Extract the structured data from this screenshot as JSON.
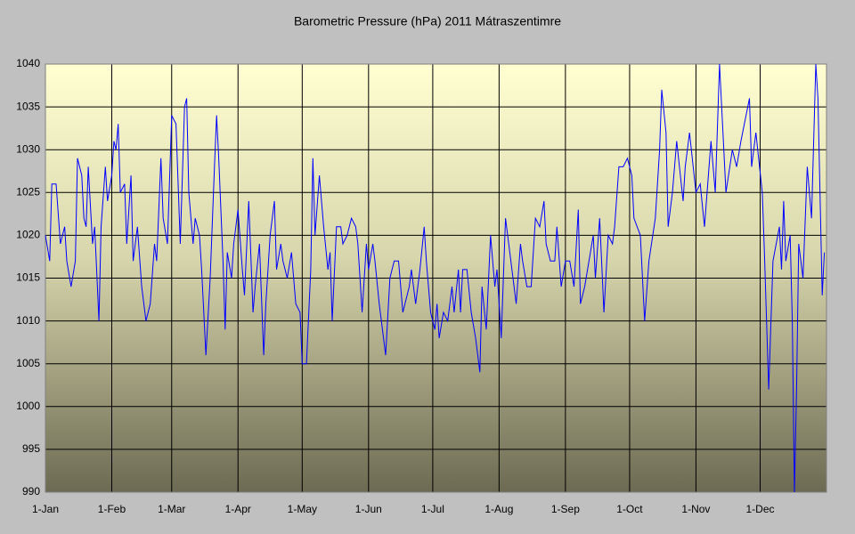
{
  "chart_data": {
    "type": "line",
    "title": "Barometric Pressure (hPa) 2011 Mátraszentimre",
    "color": "#0000ff",
    "grid": true,
    "xlim": [
      0,
      365
    ],
    "xticks": [
      {
        "value": 0,
        "label": "1-Jan"
      },
      {
        "value": 31,
        "label": "1-Feb"
      },
      {
        "value": 59,
        "label": "1-Mar"
      },
      {
        "value": 90,
        "label": "1-Apr"
      },
      {
        "value": 120,
        "label": "1-May"
      },
      {
        "value": 151,
        "label": "1-Jun"
      },
      {
        "value": 181,
        "label": "1-Jul"
      },
      {
        "value": 212,
        "label": "1-Aug"
      },
      {
        "value": 243,
        "label": "1-Sep"
      },
      {
        "value": 273,
        "label": "1-Oct"
      },
      {
        "value": 304,
        "label": "1-Nov"
      },
      {
        "value": 334,
        "label": "1-Dec"
      }
    ],
    "ylim": [
      990,
      1040
    ],
    "yticks": [
      990,
      995,
      1000,
      1005,
      1010,
      1015,
      1020,
      1025,
      1030,
      1035,
      1040
    ],
    "x": [
      0,
      2,
      3,
      5,
      7,
      9,
      10,
      12,
      14,
      15,
      17,
      18,
      19,
      20,
      22,
      23,
      25,
      26,
      28,
      29,
      31,
      32,
      33,
      34,
      35,
      37,
      38,
      40,
      41,
      43,
      45,
      47,
      49,
      51,
      52,
      54,
      55,
      57,
      59,
      61,
      63,
      65,
      66,
      67,
      69,
      70,
      72,
      73,
      75,
      77,
      79,
      80,
      81,
      83,
      84,
      85,
      87,
      88,
      90,
      92,
      93,
      95,
      97,
      98,
      100,
      102,
      103,
      105,
      107,
      108,
      110,
      111,
      113,
      115,
      117,
      119,
      120,
      122,
      124,
      125,
      126,
      128,
      130,
      132,
      133,
      134,
      136,
      138,
      139,
      141,
      143,
      145,
      146,
      148,
      150,
      151,
      153,
      154,
      156,
      158,
      159,
      161,
      163,
      165,
      167,
      170,
      171,
      173,
      175,
      177,
      178,
      180,
      182,
      183,
      184,
      186,
      188,
      190,
      191,
      193,
      194,
      195,
      197,
      199,
      201,
      203,
      204,
      206,
      208,
      210,
      211,
      213,
      215,
      217,
      218,
      220,
      222,
      223,
      225,
      227,
      229,
      231,
      233,
      234,
      236,
      238,
      239,
      241,
      243,
      245,
      247,
      249,
      250,
      252,
      254,
      256,
      257,
      259,
      261,
      263,
      265,
      266,
      268,
      270,
      272,
      274,
      275,
      278,
      280,
      282,
      285,
      287,
      288,
      290,
      291,
      293,
      295,
      298,
      299,
      301,
      304,
      306,
      308,
      311,
      313,
      315,
      318,
      321,
      323,
      325,
      329,
      330,
      332,
      335,
      336,
      338,
      340,
      343,
      344,
      345,
      346,
      348,
      349,
      350,
      351,
      352,
      354,
      356,
      358,
      360,
      361,
      363,
      364
    ],
    "values": [
      1020,
      1017,
      1026,
      1026,
      1019,
      1021,
      1017,
      1014,
      1017,
      1029,
      1027,
      1022,
      1021,
      1028,
      1019,
      1021,
      1010,
      1021,
      1028,
      1024,
      1027,
      1031,
      1030,
      1033,
      1025,
      1026,
      1019,
      1027,
      1017,
      1021,
      1014,
      1010,
      1012,
      1019,
      1017,
      1029,
      1022,
      1019,
      1034,
      1033,
      1019,
      1035,
      1036,
      1025,
      1019,
      1022,
      1020,
      1016,
      1006,
      1015,
      1028,
      1034,
      1029,
      1017,
      1009,
      1018,
      1015,
      1019,
      1023,
      1016,
      1013,
      1024,
      1011,
      1014,
      1019,
      1006,
      1012,
      1020,
      1024,
      1016,
      1019,
      1017,
      1015,
      1018,
      1012,
      1011,
      1005,
      1005,
      1016,
      1029,
      1020,
      1027,
      1021,
      1016,
      1018,
      1010,
      1021,
      1021,
      1019,
      1020,
      1022,
      1021,
      1019,
      1011,
      1019,
      1016,
      1019,
      1017,
      1012,
      1008,
      1006,
      1015,
      1017,
      1017,
      1011,
      1014,
      1016,
      1012,
      1016,
      1021,
      1017,
      1011,
      1009,
      1012,
      1008,
      1011,
      1010,
      1014,
      1011,
      1016,
      1011,
      1016,
      1016,
      1011,
      1008,
      1004,
      1014,
      1009,
      1020,
      1014,
      1016,
      1008,
      1022,
      1018,
      1016,
      1012,
      1019,
      1017,
      1014,
      1014,
      1022,
      1021,
      1024,
      1019,
      1017,
      1017,
      1021,
      1014,
      1017,
      1017,
      1014,
      1023,
      1012,
      1014,
      1017,
      1020,
      1015,
      1022,
      1011,
      1020,
      1019,
      1021,
      1028,
      1028,
      1029,
      1027,
      1022,
      1020,
      1010,
      1017,
      1022,
      1030,
      1037,
      1032,
      1021,
      1025,
      1031,
      1024,
      1028,
      1032,
      1025,
      1026,
      1021,
      1031,
      1025,
      1040,
      1025,
      1030,
      1028,
      1031,
      1036,
      1028,
      1032,
      1025,
      1018,
      1002,
      1017,
      1021,
      1016,
      1024,
      1017,
      1020,
      1010,
      990,
      1002,
      1019,
      1015,
      1028,
      1022,
      1040,
      1036,
      1013,
      1018
    ]
  }
}
